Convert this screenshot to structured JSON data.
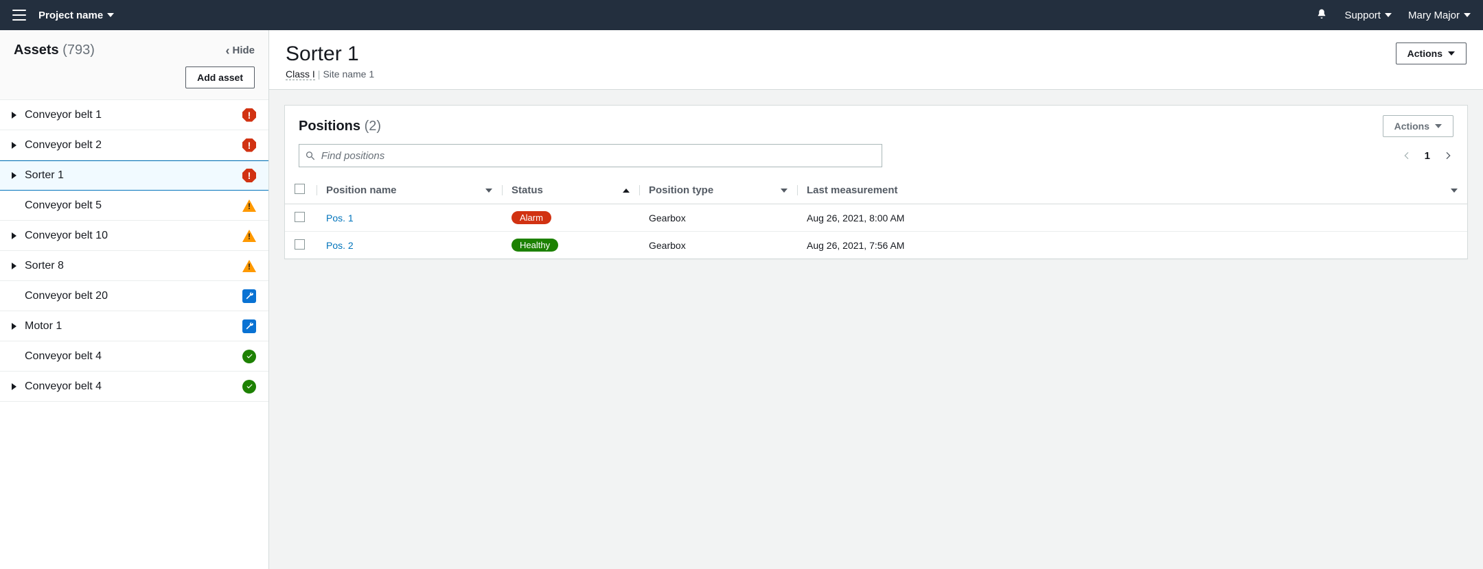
{
  "topnav": {
    "project_name": "Project name",
    "support": "Support",
    "user_name": "Mary Major"
  },
  "sidebar": {
    "title": "Assets",
    "count": "(793)",
    "hide_label": "Hide",
    "add_asset": "Add asset",
    "assets": [
      {
        "name": "Conveyor belt 1",
        "status": "alarm",
        "expandable": true,
        "selected": false
      },
      {
        "name": "Conveyor belt 2",
        "status": "alarm",
        "expandable": true,
        "selected": false
      },
      {
        "name": "Sorter 1",
        "status": "alarm",
        "expandable": true,
        "selected": true
      },
      {
        "name": "Conveyor belt 5",
        "status": "warning",
        "expandable": false,
        "selected": false
      },
      {
        "name": "Conveyor belt 10",
        "status": "warning",
        "expandable": true,
        "selected": false
      },
      {
        "name": "Sorter 8",
        "status": "warning",
        "expandable": true,
        "selected": false
      },
      {
        "name": "Conveyor belt 20",
        "status": "maint",
        "expandable": false,
        "selected": false
      },
      {
        "name": "Motor 1",
        "status": "maint",
        "expandable": true,
        "selected": false
      },
      {
        "name": "Conveyor belt 4",
        "status": "healthy",
        "expandable": false,
        "selected": false
      },
      {
        "name": "Conveyor belt 4",
        "status": "healthy",
        "expandable": true,
        "selected": false
      }
    ]
  },
  "main": {
    "page_title": "Sorter 1",
    "class_label": "Class I",
    "site_name": "Site name 1",
    "actions_label": "Actions",
    "positions": {
      "title": "Positions",
      "count": "(2)",
      "actions_label": "Actions",
      "search_placeholder": "Find positions",
      "page": "1",
      "columns": {
        "position_name": "Position name",
        "status": "Status",
        "position_type": "Position type",
        "last_measurement": "Last measurement"
      },
      "rows": [
        {
          "name": "Pos. 1",
          "status_label": "Alarm",
          "status_kind": "alarm",
          "type": "Gearbox",
          "last": "Aug 26, 2021, 8:00 AM"
        },
        {
          "name": "Pos. 2",
          "status_label": "Healthy",
          "status_kind": "healthy",
          "type": "Gearbox",
          "last": "Aug 26, 2021, 7:56 AM"
        }
      ]
    }
  },
  "style": {
    "colors": {
      "topnav_bg": "#232f3e",
      "link": "#0073bb",
      "alarm": "#d13212",
      "warning": "#ff9900",
      "maintenance": "#0972d3",
      "healthy": "#1d8102",
      "border": "#d5dbdb",
      "content_bg": "#f2f3f3",
      "text_muted": "#687078"
    }
  }
}
